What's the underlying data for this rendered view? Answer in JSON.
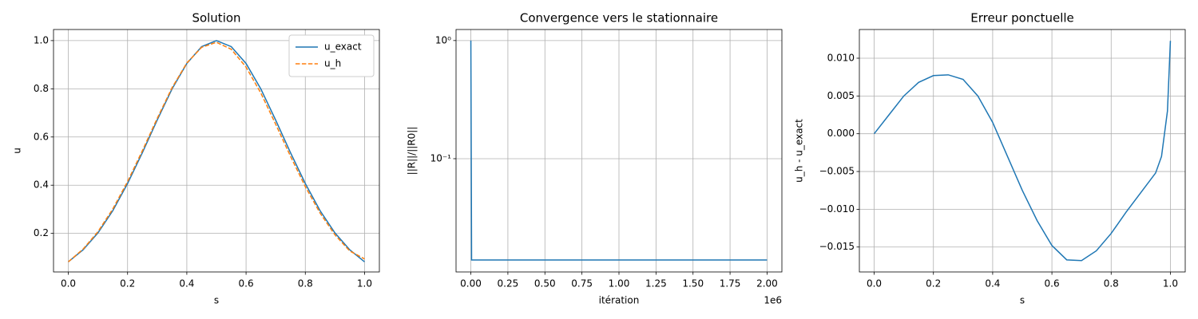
{
  "chart_data": [
    {
      "type": "line",
      "title": "Solution",
      "xlabel": "s",
      "ylabel": "u",
      "x": [
        0,
        0.05,
        0.1,
        0.15,
        0.2,
        0.25,
        0.3,
        0.35,
        0.4,
        0.45,
        0.5,
        0.55,
        0.6,
        0.65,
        0.7,
        0.75,
        0.8,
        0.85,
        0.9,
        0.95,
        1
      ],
      "series": [
        {
          "name": "u_exact",
          "color": "#1f77b4",
          "linestyle": "solid",
          "values": [
            0.082,
            0.132,
            0.202,
            0.294,
            0.407,
            0.535,
            0.67,
            0.799,
            0.905,
            0.975,
            1,
            0.975,
            0.905,
            0.799,
            0.67,
            0.535,
            0.407,
            0.294,
            0.202,
            0.132,
            0.082
          ]
        },
        {
          "name": "u_h",
          "color": "#ff7f0e",
          "linestyle": "dashed",
          "values": [
            0.082,
            0.135,
            0.207,
            0.301,
            0.415,
            0.543,
            0.677,
            0.804,
            0.907,
            0.972,
            0.993,
            0.964,
            0.89,
            0.782,
            0.653,
            0.52,
            0.394,
            0.284,
            0.194,
            0.127,
            0.094
          ]
        }
      ],
      "xlim": [
        -0.05,
        1.05
      ],
      "xticks": [
        {
          "value": 0,
          "label": "0.0"
        },
        0.2,
        0.4,
        0.6,
        0.8,
        {
          "value": 1,
          "label": "1.0"
        }
      ],
      "ylim": [
        0.04,
        1.046
      ],
      "yticks": [
        0.2,
        0.4,
        0.6,
        0.8,
        {
          "value": 1,
          "label": "1.0"
        }
      ],
      "grid": true,
      "legend": "upper right"
    },
    {
      "type": "line",
      "title": "Convergence vers le stationnaire",
      "xlabel": "itération",
      "ylabel": "||R||/||R0||",
      "x_offset_label": "1e6",
      "yscale": "log",
      "x": [
        0,
        5000,
        2000000
      ],
      "series": [
        {
          "color": "#1f77b4",
          "linestyle": "solid",
          "values": [
            1,
            0.0139,
            0.0139
          ]
        }
      ],
      "xlim": [
        -100000,
        2100000
      ],
      "xticks": [
        {
          "value": 0,
          "label": "0.00"
        },
        {
          "value": 250000,
          "label": "0.25"
        },
        {
          "value": 500000,
          "label": "0.50"
        },
        {
          "value": 750000,
          "label": "0.75"
        },
        {
          "value": 1000000,
          "label": "1.00"
        },
        {
          "value": 1250000,
          "label": "1.25"
        },
        {
          "value": 1500000,
          "label": "1.50"
        },
        {
          "value": 1750000,
          "label": "1.75"
        },
        {
          "value": 2000000,
          "label": "2.00"
        }
      ],
      "ylim": [
        0.011,
        1.24
      ],
      "yticks": [
        {
          "value": 0.1,
          "label": "10⁻¹"
        },
        {
          "value": 1,
          "label": "10⁰"
        }
      ],
      "grid": true
    },
    {
      "type": "line",
      "title": "Erreur ponctuelle",
      "xlabel": "s",
      "ylabel": "u_h - u_exact",
      "x": [
        0,
        0.05,
        0.1,
        0.15,
        0.2,
        0.25,
        0.3,
        0.35,
        0.4,
        0.45,
        0.5,
        0.55,
        0.6,
        0.65,
        0.7,
        0.75,
        0.8,
        0.85,
        0.9,
        0.95,
        0.97,
        0.99,
        1
      ],
      "series": [
        {
          "color": "#1f77b4",
          "linestyle": "solid",
          "values": [
            0,
            0.0025,
            0.005,
            0.0068,
            0.0077,
            0.0078,
            0.0072,
            0.005,
            0.0015,
            -0.003,
            -0.0075,
            -0.0115,
            -0.0148,
            -0.0167,
            -0.0168,
            -0.0155,
            -0.0132,
            -0.0104,
            -0.0078,
            -0.0052,
            -0.003,
            0.003,
            0.0123
          ]
        }
      ],
      "xlim": [
        -0.05,
        1.05
      ],
      "xticks": [
        {
          "value": 0,
          "label": "0.0"
        },
        0.2,
        0.4,
        0.6,
        0.8,
        {
          "value": 1,
          "label": "1.0"
        }
      ],
      "ylim": [
        -0.0183,
        0.0138
      ],
      "yticks": [
        {
          "value": -0.015,
          "label": "−0.015"
        },
        {
          "value": -0.01,
          "label": "−0.010"
        },
        {
          "value": -0.005,
          "label": "−0.005"
        },
        {
          "value": 0,
          "label": "0.000"
        },
        {
          "value": 0.005,
          "label": "0.005"
        },
        {
          "value": 0.01,
          "label": "0.010"
        }
      ],
      "grid": true
    }
  ]
}
